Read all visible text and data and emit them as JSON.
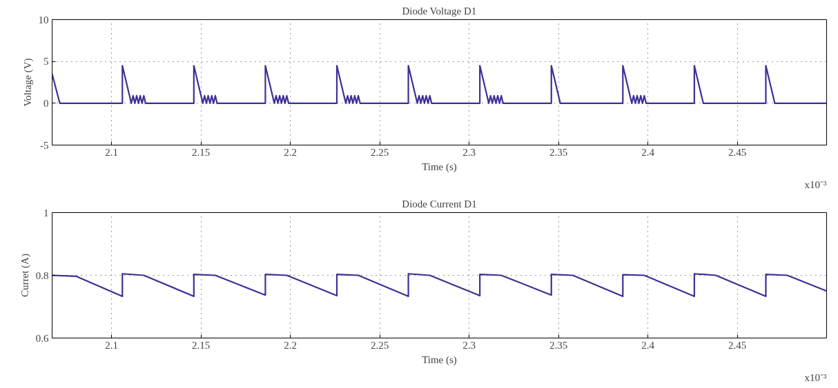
{
  "chart_data": [
    {
      "type": "line",
      "title": "Diode Voltage D1",
      "xlabel": "Time (s)",
      "ylabel": "Voltage (V)",
      "annotations": [
        "x10⁻³"
      ],
      "xlim": [
        2.0667,
        2.5
      ],
      "ylim": [
        -5,
        10
      ],
      "xticks": [
        2.1,
        2.15,
        2.2,
        2.25,
        2.3,
        2.35,
        2.4,
        2.45
      ],
      "yticks": [
        -5,
        0,
        5,
        10
      ],
      "grid": true,
      "x": [
        2.0667,
        2.071,
        2.106,
        2.106,
        2.111,
        2.112,
        2.113,
        2.114,
        2.115,
        2.116,
        2.117,
        2.118,
        2.119,
        2.146,
        2.146,
        2.151,
        2.152,
        2.153,
        2.154,
        2.155,
        2.156,
        2.157,
        2.158,
        2.159,
        2.186,
        2.186,
        2.191,
        2.192,
        2.193,
        2.194,
        2.195,
        2.196,
        2.197,
        2.198,
        2.199,
        2.226,
        2.226,
        2.231,
        2.232,
        2.233,
        2.234,
        2.235,
        2.236,
        2.237,
        2.238,
        2.239,
        2.266,
        2.266,
        2.271,
        2.272,
        2.273,
        2.274,
        2.275,
        2.276,
        2.277,
        2.278,
        2.279,
        2.306,
        2.306,
        2.311,
        2.312,
        2.313,
        2.314,
        2.315,
        2.316,
        2.317,
        2.318,
        2.319,
        2.346,
        2.346,
        2.351,
        2.386,
        2.386,
        2.391,
        2.392,
        2.393,
        2.394,
        2.395,
        2.396,
        2.397,
        2.398,
        2.399,
        2.426,
        2.426,
        2.431,
        2.466,
        2.466,
        2.471,
        2.5
      ],
      "series": [
        {
          "color": "#3b3096",
          "values": [
            3.5,
            0,
            0,
            4.5,
            0,
            0.9,
            0,
            0.9,
            0,
            0.9,
            0,
            0.9,
            0,
            0,
            4.5,
            0,
            0.9,
            0,
            0.9,
            0,
            0.9,
            0,
            0.9,
            0,
            0,
            4.5,
            0,
            0.9,
            0,
            0.9,
            0,
            0.9,
            0,
            0.9,
            0,
            0,
            4.5,
            0,
            0.9,
            0,
            0.9,
            0,
            0.9,
            0,
            0.9,
            0,
            0,
            4.5,
            0,
            0.9,
            0,
            0.9,
            0,
            0.9,
            0,
            0.9,
            0,
            0,
            4.5,
            0,
            0.9,
            0,
            0.9,
            0,
            0.9,
            0,
            0.9,
            0,
            0,
            4.5,
            0,
            0,
            4.5,
            0,
            0.9,
            0,
            0.9,
            0,
            0.9,
            0,
            0.9,
            0,
            0,
            4.5,
            0,
            0,
            4.5,
            0,
            0
          ]
        }
      ]
    },
    {
      "type": "line",
      "title": "Diode Current D1",
      "xlabel": "Time (s)",
      "ylabel": "Curret (A)",
      "annotations": [
        "x10⁻³"
      ],
      "xlim": [
        2.0667,
        2.5
      ],
      "ylim": [
        0.6,
        1
      ],
      "xticks": [
        2.1,
        2.15,
        2.2,
        2.25,
        2.3,
        2.35,
        2.4,
        2.45
      ],
      "yticks": [
        0.6,
        0.8,
        1
      ],
      "grid": true,
      "x": [
        2.0667,
        2.08,
        2.106,
        2.106,
        2.118,
        2.146,
        2.146,
        2.158,
        2.186,
        2.186,
        2.198,
        2.226,
        2.226,
        2.238,
        2.266,
        2.266,
        2.278,
        2.306,
        2.306,
        2.318,
        2.346,
        2.346,
        2.358,
        2.386,
        2.386,
        2.398,
        2.426,
        2.426,
        2.438,
        2.466,
        2.466,
        2.478,
        2.5
      ],
      "series": [
        {
          "color": "#3b3096",
          "values": [
            0.8,
            0.797,
            0.733,
            0.805,
            0.8,
            0.733,
            0.803,
            0.8,
            0.737,
            0.803,
            0.8,
            0.735,
            0.803,
            0.8,
            0.733,
            0.805,
            0.8,
            0.735,
            0.803,
            0.8,
            0.737,
            0.803,
            0.8,
            0.733,
            0.802,
            0.8,
            0.733,
            0.805,
            0.8,
            0.733,
            0.803,
            0.8,
            0.75
          ]
        }
      ]
    }
  ]
}
